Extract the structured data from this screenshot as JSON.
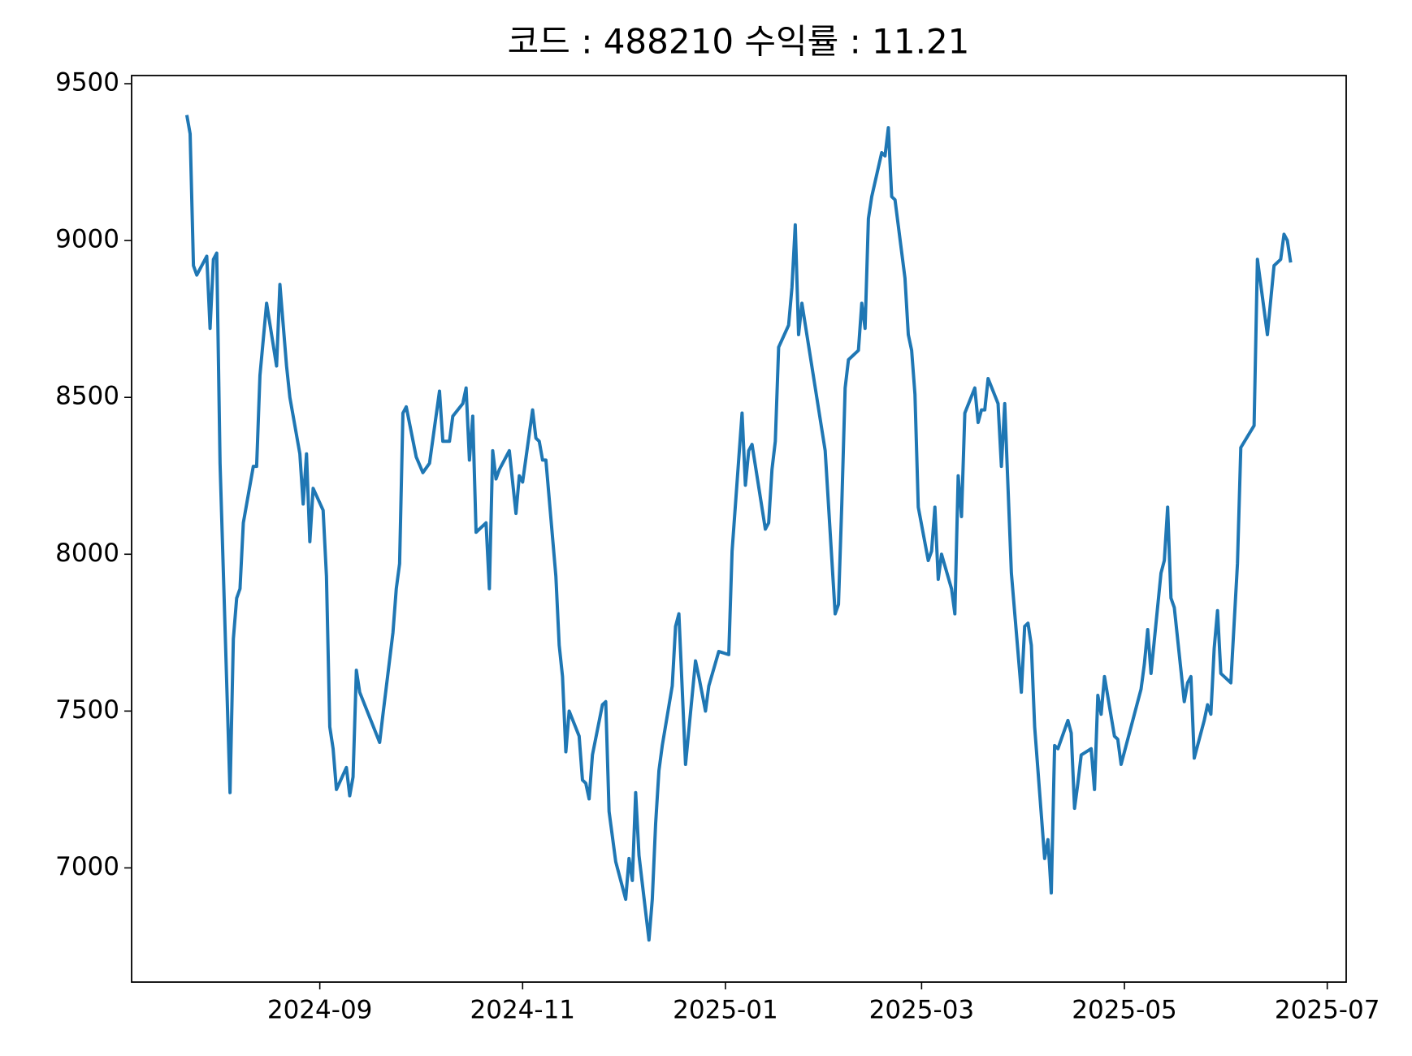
{
  "chart_data": {
    "type": "line",
    "title": "코드 : 488210 수익률 : 11.21",
    "color": "#1f77b4",
    "xlim": [
      19910.4,
      20275.7
    ],
    "ylim": [
      6636,
      9526
    ],
    "xticks": [
      {
        "value": 19967,
        "label": "2024-09"
      },
      {
        "value": 20028,
        "label": "2024-11"
      },
      {
        "value": 20089,
        "label": "2025-01"
      },
      {
        "value": 20148,
        "label": "2025-03"
      },
      {
        "value": 20209,
        "label": "2025-05"
      },
      {
        "value": 20270,
        "label": "2025-07"
      }
    ],
    "yticks": [
      7000,
      7500,
      8000,
      8500,
      9000,
      9500
    ],
    "x": [
      19927,
      19928,
      19929,
      19930,
      19933,
      19934,
      19935,
      19936,
      19937,
      19940,
      19941,
      19942,
      19943,
      19944,
      19947,
      19948,
      19949,
      19951,
      19954,
      19955,
      19957,
      19958,
      19961,
      19962,
      19963,
      19964,
      19965,
      19968,
      19969,
      19970,
      19971,
      19972,
      19975,
      19976,
      19977,
      19978,
      19979,
      19985,
      19986,
      19989,
      19990,
      19991,
      19992,
      19993,
      19996,
      19998,
      20000,
      20003,
      20004,
      20006,
      20007,
      20010,
      20011,
      20012,
      20013,
      20014,
      20017,
      20018,
      20019,
      20020,
      20021,
      20024,
      20026,
      20027,
      20028,
      20031,
      20032,
      20033,
      20034,
      20035,
      20038,
      20039,
      20040,
      20041,
      20042,
      20045,
      20046,
      20047,
      20048,
      20049,
      20052,
      20053,
      20054,
      20056,
      20059,
      20060,
      20061,
      20062,
      20063,
      20066,
      20067,
      20068,
      20069,
      20070,
      20073,
      20074,
      20075,
      20077,
      20080,
      20081,
      20083,
      20084,
      20087,
      20090,
      20091,
      20094,
      20095,
      20096,
      20097,
      20101,
      20102,
      20103,
      20104,
      20105,
      20108,
      20109,
      20110,
      20111,
      20112,
      20119,
      20122,
      20123,
      20124,
      20125,
      20126,
      20129,
      20130,
      20131,
      20132,
      20133,
      20136,
      20137,
      20138,
      20139,
      20140,
      20143,
      20144,
      20145,
      20146,
      20147,
      20150,
      20151,
      20152,
      20153,
      20154,
      20157,
      20158,
      20159,
      20160,
      20161,
      20164,
      20165,
      20166,
      20167,
      20168,
      20171,
      20172,
      20173,
      20175,
      20178,
      20179,
      20180,
      20181,
      20182,
      20185,
      20186,
      20187,
      20188,
      20189,
      20192,
      20193,
      20194,
      20195,
      20196,
      20199,
      20200,
      20201,
      20202,
      20203,
      20206,
      20207,
      20208,
      20214,
      20215,
      20216,
      20217,
      20220,
      20221,
      20222,
      20223,
      20224,
      20227,
      20228,
      20229,
      20230,
      20233,
      20234,
      20235,
      20236,
      20237,
      20238,
      20241,
      20243,
      20244,
      20248,
      20249,
      20252,
      20254,
      20256,
      20257,
      20258,
      20259
    ],
    "values": [
      9400,
      9340,
      8920,
      8890,
      8950,
      8720,
      8940,
      8960,
      8290,
      7240,
      7730,
      7860,
      7890,
      8100,
      8280,
      8280,
      8570,
      8800,
      8600,
      8860,
      8600,
      8500,
      8320,
      8160,
      8320,
      8040,
      8210,
      8140,
      7930,
      7450,
      7380,
      7250,
      7320,
      7230,
      7290,
      7630,
      7560,
      7400,
      7490,
      7750,
      7890,
      7970,
      8450,
      8470,
      8310,
      8260,
      8290,
      8520,
      8360,
      8360,
      8440,
      8480,
      8530,
      8300,
      8440,
      8070,
      8100,
      7890,
      8330,
      8240,
      8270,
      8330,
      8130,
      8250,
      8230,
      8460,
      8370,
      8360,
      8300,
      8300,
      7930,
      7710,
      7610,
      7370,
      7500,
      7420,
      7280,
      7270,
      7220,
      7360,
      7520,
      7530,
      7180,
      7020,
      6900,
      7030,
      6960,
      7240,
      7040,
      6770,
      6900,
      7140,
      7310,
      7390,
      7580,
      7770,
      7810,
      7330,
      7660,
      7610,
      7500,
      7580,
      7690,
      7680,
      8010,
      8450,
      8220,
      8330,
      8350,
      8080,
      8100,
      8270,
      8360,
      8660,
      8730,
      8850,
      9050,
      8700,
      8800,
      8330,
      7810,
      7840,
      8160,
      8530,
      8620,
      8650,
      8800,
      8720,
      9070,
      9140,
      9280,
      9270,
      9360,
      9140,
      9130,
      8880,
      8700,
      8650,
      8510,
      8150,
      7980,
      8010,
      8150,
      7920,
      8000,
      7890,
      7810,
      8250,
      8120,
      8450,
      8530,
      8420,
      8460,
      8460,
      8560,
      8480,
      8280,
      8480,
      7940,
      7560,
      7770,
      7780,
      7710,
      7450,
      7030,
      7090,
      6920,
      7390,
      7380,
      7470,
      7430,
      7190,
      7270,
      7360,
      7380,
      7250,
      7550,
      7490,
      7610,
      7420,
      7410,
      7330,
      7570,
      7650,
      7760,
      7620,
      7940,
      7980,
      8150,
      7860,
      7830,
      7530,
      7590,
      7610,
      7350,
      7470,
      7520,
      7490,
      7700,
      7820,
      7620,
      7590,
      7970,
      8340,
      8410,
      8940,
      8700,
      8920,
      8940,
      9020,
      9000,
      8930
    ]
  }
}
